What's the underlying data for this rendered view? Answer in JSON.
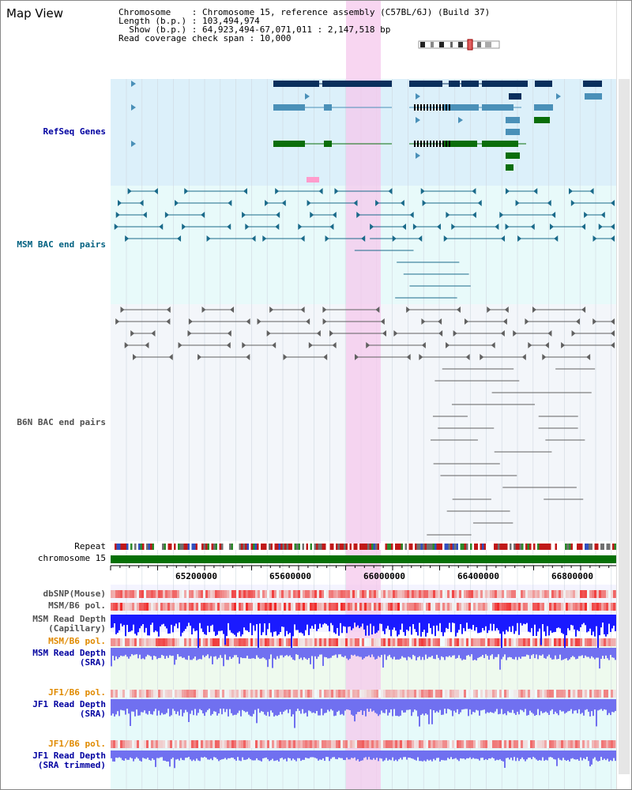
{
  "app": {
    "title": "Map View"
  },
  "header": {
    "line1": "Chromosome    : Chromosome 15, reference assembly (C57BL/6J) (Build 37)",
    "line2": "Length (b.p.) : 103,494,974",
    "line3": "  Show (b.p.) : 64,923,494-67,071,011 : 2,147,518 bp",
    "line4": "Read coverage check span : 10,000"
  },
  "tracks": {
    "refseq": "RefSeq Genes",
    "msm_bac": "MSM BAC end pairs",
    "b6n_bac": "B6N BAC end pairs",
    "repeat": "Repeat",
    "chromosome": "chromosome 15",
    "dbsnp": "dbSNP(Mouse)",
    "msm_b6_pol": "MSM/B6 pol.",
    "msm_depth_cap_1": "MSM Read Depth",
    "msm_depth_cap_2": "(Capillary)",
    "msm_b6_pol_2": "MSM/B6 pol.",
    "msm_depth_sra_1": "MSM Read Depth",
    "msm_depth_sra_2": "(SRA)",
    "jf1_b6_pol": "JF1/B6 pol.",
    "jf1_depth_sra_1": "JF1 Read Depth",
    "jf1_depth_sra_2": "(SRA)",
    "jf1_b6_pol_2": "JF1/B6 pol.",
    "jf1_depth_trim_1": "JF1 Read Depth",
    "jf1_depth_trim_2": "(SRA trimmed)"
  },
  "axis": {
    "ticks": [
      "65200000",
      "65600000",
      "66000000",
      "66400000",
      "66800000"
    ]
  },
  "colors": {
    "refseq_bg": "#dcf0fa",
    "bac_bg": "#e8fafa",
    "b6n_bg": "#f3f6fa",
    "highlight": "#f5c8ec",
    "gene_dark": "#0a2f5c",
    "gene_mid": "#4a90b8",
    "gene_green": "#0a6e0a",
    "chrom": "#067006",
    "depth_blue": "#1a1aff",
    "depth_light": "#7070f0",
    "label_navy": "#0000a0",
    "label_orange": "#e08a00",
    "label_gray": "#505050",
    "label_teal": "#006080"
  }
}
